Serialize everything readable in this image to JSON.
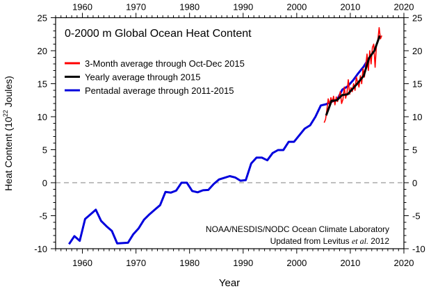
{
  "chart_data": {
    "type": "line",
    "title": "0-2000 m Global Ocean Heat Content",
    "xlabel": "Year",
    "ylabel": "Heat Content (10",
    "ylabel_sup": "22",
    "ylabel_end": " Joules)",
    "xlim": [
      1955,
      2020
    ],
    "ylim": [
      -10,
      25
    ],
    "x_ticks": [
      1960,
      1970,
      1980,
      1990,
      2000,
      2010,
      2020
    ],
    "y_ticks": [
      -10,
      -5,
      0,
      5,
      10,
      15,
      20,
      25
    ],
    "zero_line": {
      "value": 0,
      "style": "dashed",
      "color": "#aaaaaa"
    },
    "legend_placement": "top-left",
    "credit_line1": "NOAA/NESDIS/NODC Ocean Climate Laboratory",
    "credit_line2_a": "Updated from Levitus ",
    "credit_line2_b": "et al.",
    "credit_line2_c": " 2012",
    "series": [
      {
        "name": "Pentadal average through 2011-2015",
        "color": "#0000dd",
        "x": [
          1957,
          1958,
          1959,
          1960,
          1961,
          1962,
          1963,
          1964,
          1965,
          1966,
          1967,
          1968,
          1969,
          1970,
          1971,
          1972,
          1973,
          1974,
          1975,
          1976,
          1977,
          1978,
          1979,
          1980,
          1981,
          1982,
          1983,
          1984,
          1985,
          1986,
          1987,
          1988,
          1989,
          1990,
          1991,
          1992,
          1993,
          1994,
          1995,
          1996,
          1997,
          1998,
          1999,
          2000,
          2001,
          2002,
          2003,
          2004,
          2005,
          2006,
          2007,
          2008,
          2009,
          2010,
          2011,
          2012,
          2013
        ],
        "values": [
          -9.3,
          -8.1,
          -8.8,
          -5.5,
          -4.8,
          -4.1,
          -5.8,
          -6.6,
          -7.3,
          -9.2,
          -9.15,
          -9.1,
          -7.8,
          -6.9,
          -5.6,
          -4.8,
          -4.1,
          -3.4,
          -1.4,
          -1.5,
          -1.2,
          0.0,
          0.0,
          -1.25,
          -1.45,
          -1.15,
          -1.1,
          -0.2,
          0.5,
          0.75,
          1.0,
          0.8,
          0.3,
          0.4,
          2.9,
          3.8,
          3.8,
          3.4,
          4.5,
          4.95,
          4.95,
          6.2,
          6.2,
          7.2,
          8.2,
          8.7,
          10.0,
          11.7,
          11.9,
          12.3,
          12.5,
          14.1,
          14.6,
          15.5,
          16.6,
          17.6,
          18.9
        ]
      },
      {
        "name": "3-Month average through Oct-Dec 2015",
        "color": "#ff0000",
        "x": [
          2005.125,
          2005.375,
          2005.625,
          2005.875,
          2006.125,
          2006.375,
          2006.625,
          2006.875,
          2007.125,
          2007.375,
          2007.625,
          2007.875,
          2008.125,
          2008.375,
          2008.625,
          2008.875,
          2009.125,
          2009.375,
          2009.625,
          2009.875,
          2010.125,
          2010.375,
          2010.625,
          2010.875,
          2011.125,
          2011.375,
          2011.625,
          2011.875,
          2012.125,
          2012.375,
          2012.625,
          2012.875,
          2013.125,
          2013.375,
          2013.625,
          2013.875,
          2014.125,
          2014.375,
          2014.625,
          2014.875,
          2015.125,
          2015.375,
          2015.625,
          2015.875
        ],
        "values": [
          9.1,
          9.6,
          11.0,
          12.7,
          11.8,
          12.9,
          12.2,
          13.1,
          11.8,
          13.0,
          12.3,
          13.0,
          13.8,
          12.0,
          12.6,
          14.5,
          12.8,
          13.6,
          15.6,
          13.4,
          14.4,
          13.8,
          15.0,
          14.0,
          16.0,
          15.2,
          14.5,
          16.2,
          15.0,
          17.3,
          16.0,
          17.8,
          19.5,
          17.0,
          20.0,
          18.0,
          20.5,
          21.0,
          17.5,
          20.8,
          21.5,
          23.5,
          21.8,
          22.3
        ]
      },
      {
        "name": "Yearly average through 2015",
        "color": "#000000",
        "x": [
          2005,
          2006,
          2007,
          2008,
          2009,
          2010,
          2011,
          2012,
          2013,
          2014,
          2015
        ],
        "values": [
          10.2,
          12.4,
          12.5,
          13.3,
          13.4,
          14.3,
          15.2,
          16.2,
          18.9,
          20.0,
          22.3
        ]
      }
    ],
    "legend_order": [
      1,
      2,
      0
    ]
  }
}
